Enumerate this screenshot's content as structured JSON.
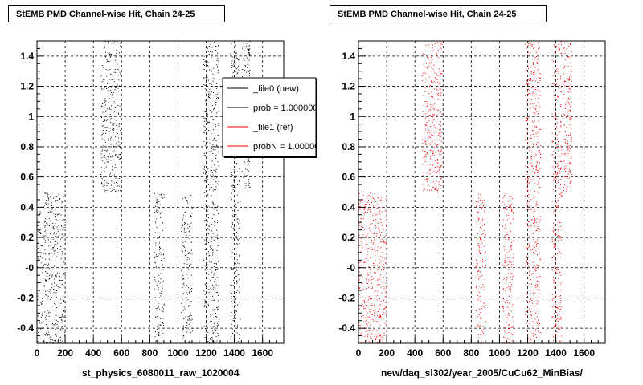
{
  "footer": "",
  "chart_data": [
    {
      "type": "scatter",
      "title": "StEMB PMD Channel-wise Hit, Chain 24-25",
      "xlabel": "st_physics_6080011_raw_1020004",
      "ylabel": "",
      "xlim": [
        0,
        1750
      ],
      "ylim": [
        -0.5,
        1.5
      ],
      "x_ticks": [
        0,
        200,
        400,
        600,
        800,
        1000,
        1200,
        1400,
        1600
      ],
      "y_ticks": [
        -0.4,
        -0.2,
        0,
        0.2,
        0.4,
        0.6,
        0.8,
        1,
        1.2,
        1.4
      ],
      "y_tick_labels": [
        "-0.4",
        "-0.2",
        "-0",
        "0.2",
        "0.4",
        "0.6",
        "0.8",
        "1",
        "1.2",
        "1.4"
      ],
      "grid": true,
      "legend": {
        "placement": "top-right",
        "entries": [
          {
            "label": "_file0 (new)",
            "color": "#000000"
          },
          {
            "label": "prob = 1.000000",
            "color": "#000000"
          },
          {
            "label": "_file1 (ref)",
            "color": "#ff0000"
          },
          {
            "label": "probN = 1.000000",
            "color": "#ff0000"
          }
        ]
      },
      "series": [
        {
          "color": "#000000",
          "clusters": [
            {
              "x": [
                0,
                200
              ],
              "y": [
                -0.5,
                0.5
              ]
            },
            {
              "x": [
                450,
                590
              ],
              "y": [
                0.5,
                1.5
              ]
            },
            {
              "x": [
                830,
                900
              ],
              "y": [
                -0.5,
                0.5
              ]
            },
            {
              "x": [
                1020,
                1100
              ],
              "y": [
                -0.5,
                0.5
              ]
            },
            {
              "x": [
                1180,
                1290
              ],
              "y": [
                -0.5,
                1.5
              ]
            },
            {
              "x": [
                1370,
                1440
              ],
              "y": [
                -0.5,
                1.5
              ]
            },
            {
              "x": [
                1450,
                1500
              ],
              "y": [
                0.5,
                1.5
              ]
            },
            {
              "x": [
                1495,
                1510
              ],
              "y": [
                0.5,
                1.5
              ]
            }
          ]
        }
      ]
    },
    {
      "type": "scatter",
      "title": "StEMB PMD Channel-wise Hit, Chain 24-25",
      "xlabel": "new/daq_sl302/year_2005/CuCu62_MinBias/",
      "ylabel": "",
      "xlim": [
        0,
        1750
      ],
      "ylim": [
        -0.5,
        1.5
      ],
      "x_ticks": [
        0,
        200,
        400,
        600,
        800,
        1000,
        1200,
        1400,
        1600
      ],
      "y_ticks": [
        -0.4,
        -0.2,
        0,
        0.2,
        0.4,
        0.6,
        0.8,
        1,
        1.2,
        1.4
      ],
      "y_tick_labels": [
        "-0.4",
        "-0.2",
        "-0",
        "0.2",
        "0.4",
        "0.6",
        "0.8",
        "1",
        "1.2",
        "1.4"
      ],
      "grid": true,
      "series": [
        {
          "color": "#ff0000",
          "clusters": [
            {
              "x": [
                0,
                200
              ],
              "y": [
                -0.5,
                0.5
              ]
            },
            {
              "x": [
                450,
                590
              ],
              "y": [
                0.5,
                1.5
              ]
            },
            {
              "x": [
                830,
                900
              ],
              "y": [
                -0.5,
                0.5
              ]
            },
            {
              "x": [
                1020,
                1100
              ],
              "y": [
                -0.5,
                0.5
              ]
            },
            {
              "x": [
                1180,
                1290
              ],
              "y": [
                -0.5,
                1.5
              ]
            },
            {
              "x": [
                1370,
                1440
              ],
              "y": [
                -0.5,
                1.5
              ]
            },
            {
              "x": [
                1450,
                1500
              ],
              "y": [
                0.5,
                1.5
              ]
            },
            {
              "x": [
                1495,
                1510
              ],
              "y": [
                0.5,
                1.5
              ]
            }
          ]
        }
      ]
    }
  ]
}
